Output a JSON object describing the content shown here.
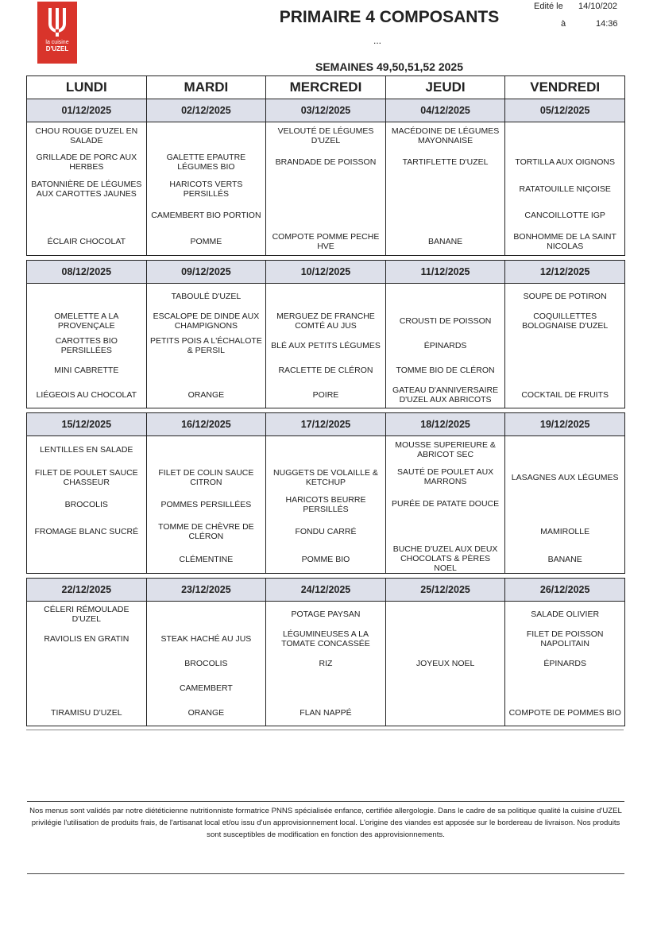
{
  "header": {
    "logo": {
      "line1": "la cuisine",
      "line2": "D'UZEL"
    },
    "title": "PRIMAIRE 4 COMPOSANTS",
    "dots": "...",
    "subtitle": "SEMAINES 49,50,51,52 2025",
    "edited_label": "Edité le",
    "edited_date": "14/10/202",
    "at_label": "à",
    "edited_time": "14:36"
  },
  "days": [
    "LUNDI",
    "MARDI",
    "MERCREDI",
    "JEUDI",
    "VENDREDI"
  ],
  "weeks": [
    [
      {
        "date": "01/12/2025",
        "items": [
          "CHOU ROUGE D'UZEL EN SALADE",
          "GRILLADE DE PORC AUX HERBES",
          "BATONNIÈRE DE LÉGUMES AUX CAROTTES JAUNES",
          null,
          "ÉCLAIR CHOCOLAT"
        ]
      },
      {
        "date": "02/12/2025",
        "items": [
          null,
          "GALETTE EPAUTRE LÉGUMES BIO",
          "HARICOTS VERTS PERSILLÉS",
          "CAMEMBERT BIO PORTION",
          "POMME"
        ]
      },
      {
        "date": "03/12/2025",
        "items": [
          "VELOUTÉ DE LÉGUMES D'UZEL",
          "BRANDADE DE POISSON",
          null,
          null,
          "COMPOTE POMME PECHE HVE"
        ]
      },
      {
        "date": "04/12/2025",
        "items": [
          "MACÉDOINE DE LÉGUMES MAYONNAISE",
          "TARTIFLETTE D'UZEL",
          null,
          null,
          "BANANE"
        ]
      },
      {
        "date": "05/12/2025",
        "items": [
          null,
          "TORTILLA AUX OIGNONS",
          "RATATOUILLE NIÇOISE",
          "CANCOILLOTTE IGP",
          "BONHOMME DE LA SAINT NICOLAS"
        ]
      }
    ],
    [
      {
        "date": "08/12/2025",
        "items": [
          null,
          "OMELETTE A LA PROVENÇALE",
          "CAROTTES BIO PERSILLÉES",
          "MINI CABRETTE",
          "LIÉGEOIS AU CHOCOLAT"
        ]
      },
      {
        "date": "09/12/2025",
        "items": [
          "TABOULÉ D'UZEL",
          "ESCALOPE DE DINDE AUX CHAMPIGNONS",
          "PETITS POIS A L'ÉCHALOTE & PERSIL",
          null,
          "ORANGE"
        ]
      },
      {
        "date": "10/12/2025",
        "items": [
          null,
          "MERGUEZ DE FRANCHE COMTÉ AU JUS",
          "BLÉ AUX PETITS LÉGUMES",
          "RACLETTE DE CLÉRON",
          "POIRE"
        ]
      },
      {
        "date": "11/12/2025",
        "items": [
          null,
          "CROUSTI DE POISSON",
          "ÉPINARDS",
          "TOMME BIO DE CLÉRON",
          "GATEAU D'ANNIVERSAIRE D'UZEL AUX ABRICOTS"
        ]
      },
      {
        "date": "12/12/2025",
        "items": [
          "SOUPE DE POTIRON",
          "COQUILLETTES BOLOGNAISE D'UZEL",
          null,
          null,
          "COCKTAIL DE FRUITS"
        ]
      }
    ],
    [
      {
        "date": "15/12/2025",
        "items": [
          "LENTILLES EN SALADE",
          "FILET DE POULET SAUCE CHASSEUR",
          "BROCOLIS",
          "FROMAGE BLANC SUCRÉ",
          null
        ]
      },
      {
        "date": "16/12/2025",
        "items": [
          null,
          "FILET DE COLIN SAUCE CITRON",
          "POMMES PERSILLÉES",
          "TOMME DE CHÈVRE DE CLÉRON",
          "CLÉMENTINE"
        ]
      },
      {
        "date": "17/12/2025",
        "items": [
          null,
          "NUGGETS DE VOLAILLE & KETCHUP",
          "HARICOTS BEURRE PERSILLÉS",
          "FONDU CARRÉ",
          "POMME BIO"
        ]
      },
      {
        "date": "18/12/2025",
        "items": [
          "MOUSSE SUPERIEURE & ABRICOT SEC",
          "SAUTÉ DE POULET AUX MARRONS",
          "PURÉE DE PATATE DOUCE",
          null,
          "BUCHE D'UZEL AUX DEUX CHOCOLATS & PÈRES NOEL"
        ]
      },
      {
        "date": "19/12/2025",
        "items": [
          null,
          "LASAGNES AUX LÉGUMES",
          null,
          "MAMIROLLE",
          "BANANE"
        ]
      }
    ],
    [
      {
        "date": "22/12/2025",
        "items": [
          "CÉLERI RÉMOULADE D'UZEL",
          "RAVIOLIS EN GRATIN",
          null,
          null,
          "TIRAMISU D'UZEL"
        ]
      },
      {
        "date": "23/12/2025",
        "items": [
          null,
          "STEAK HACHÉ AU JUS",
          "BROCOLIS",
          "CAMEMBERT",
          "ORANGE"
        ]
      },
      {
        "date": "24/12/2025",
        "items": [
          "POTAGE PAYSAN",
          "LÉGUMINEUSES A LA TOMATE CONCASSÉE",
          "RIZ",
          null,
          "FLAN NAPPÉ"
        ]
      },
      {
        "date": "25/12/2025",
        "items": [
          null,
          null,
          "JOYEUX NOEL",
          null,
          null
        ]
      },
      {
        "date": "26/12/2025",
        "items": [
          "SALADE OLIVIER",
          "FILET DE POISSON NAPOLITAIN",
          "ÉPINARDS",
          null,
          "COMPOTE DE POMMES BIO"
        ]
      }
    ]
  ],
  "footer": "Nos menus sont validés par notre diététicienne nutritionniste formatrice PNNS spécialisée enfance, certifiée allergologie. Dans le cadre de sa politique qualité la cuisine d'UZEL privilégie l'utilisation de produits frais, de l'artisanat local et/ou issu d'un approvisionnement local. L'origine des viandes est apposée sur le bordereau de livraison. Nos produits sont susceptibles de modification en fonction des approvisionnements."
}
